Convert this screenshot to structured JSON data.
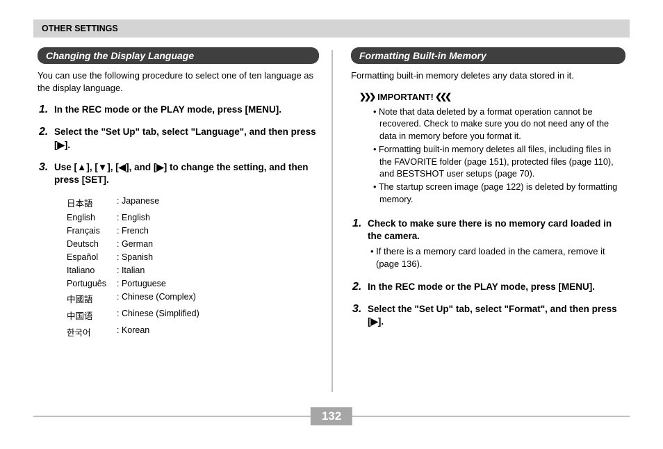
{
  "header": {
    "title": "OTHER SETTINGS"
  },
  "page_number": "132",
  "left": {
    "section_title": "Changing the Display Language",
    "intro": "You can use the following procedure to select one of ten language as the display language.",
    "steps": [
      {
        "num": "1.",
        "text": "In the REC mode or the PLAY mode, press [MENU]."
      },
      {
        "num": "2.",
        "text": "Select the \"Set Up\" tab, select \"Language\", and then press [▶]."
      },
      {
        "num": "3.",
        "text": "Use [▲], [▼], [◀], and [▶] to change the setting, and then press [SET]."
      }
    ],
    "languages": [
      {
        "native": "日本語",
        "english": "Japanese"
      },
      {
        "native": "English",
        "english": "English"
      },
      {
        "native": "Français",
        "english": "French"
      },
      {
        "native": "Deutsch",
        "english": "German"
      },
      {
        "native": "Español",
        "english": "Spanish"
      },
      {
        "native": "Italiano",
        "english": "Italian"
      },
      {
        "native": "Português",
        "english": "Portuguese"
      },
      {
        "native": "中國語",
        "english": "Chinese (Complex)"
      },
      {
        "native": "中国语",
        "english": "Chinese (Simplified)"
      },
      {
        "native": "한국어",
        "english": "Korean"
      }
    ]
  },
  "right": {
    "section_title": "Formatting Built-in Memory",
    "intro": "Formatting built-in memory deletes any data stored in it.",
    "important_label": "IMPORTANT!",
    "important_bullets": [
      "Note that data deleted by a format operation cannot be recovered. Check to make sure you do not need any of the data in memory before you format it.",
      "Formatting built-in memory deletes all files, including files in the FAVORITE folder (page 151), protected files (page 110), and BESTSHOT user setups (page 70).",
      "The startup screen image (page 122)  is deleted by formatting memory."
    ],
    "steps": [
      {
        "num": "1.",
        "text": "Check to make sure there is no memory card loaded in the camera.",
        "sub": "• If there is a memory card loaded in the camera, remove it (page 136)."
      },
      {
        "num": "2.",
        "text": "In the REC mode or the PLAY mode, press [MENU]."
      },
      {
        "num": "3.",
        "text": "Select the \"Set Up\" tab, select \"Format\", and then press [▶]."
      }
    ]
  },
  "styles": {
    "header_bg": "#d4d4d4",
    "section_bg": "#3f3f3f",
    "section_fg": "#ffffff",
    "divider_color": "#bfbfbf",
    "pagenum_bg": "#a6a6a6",
    "pagenum_fg": "#ffffff",
    "body_font_size_pt": 10,
    "title_font_size_pt": 11
  }
}
